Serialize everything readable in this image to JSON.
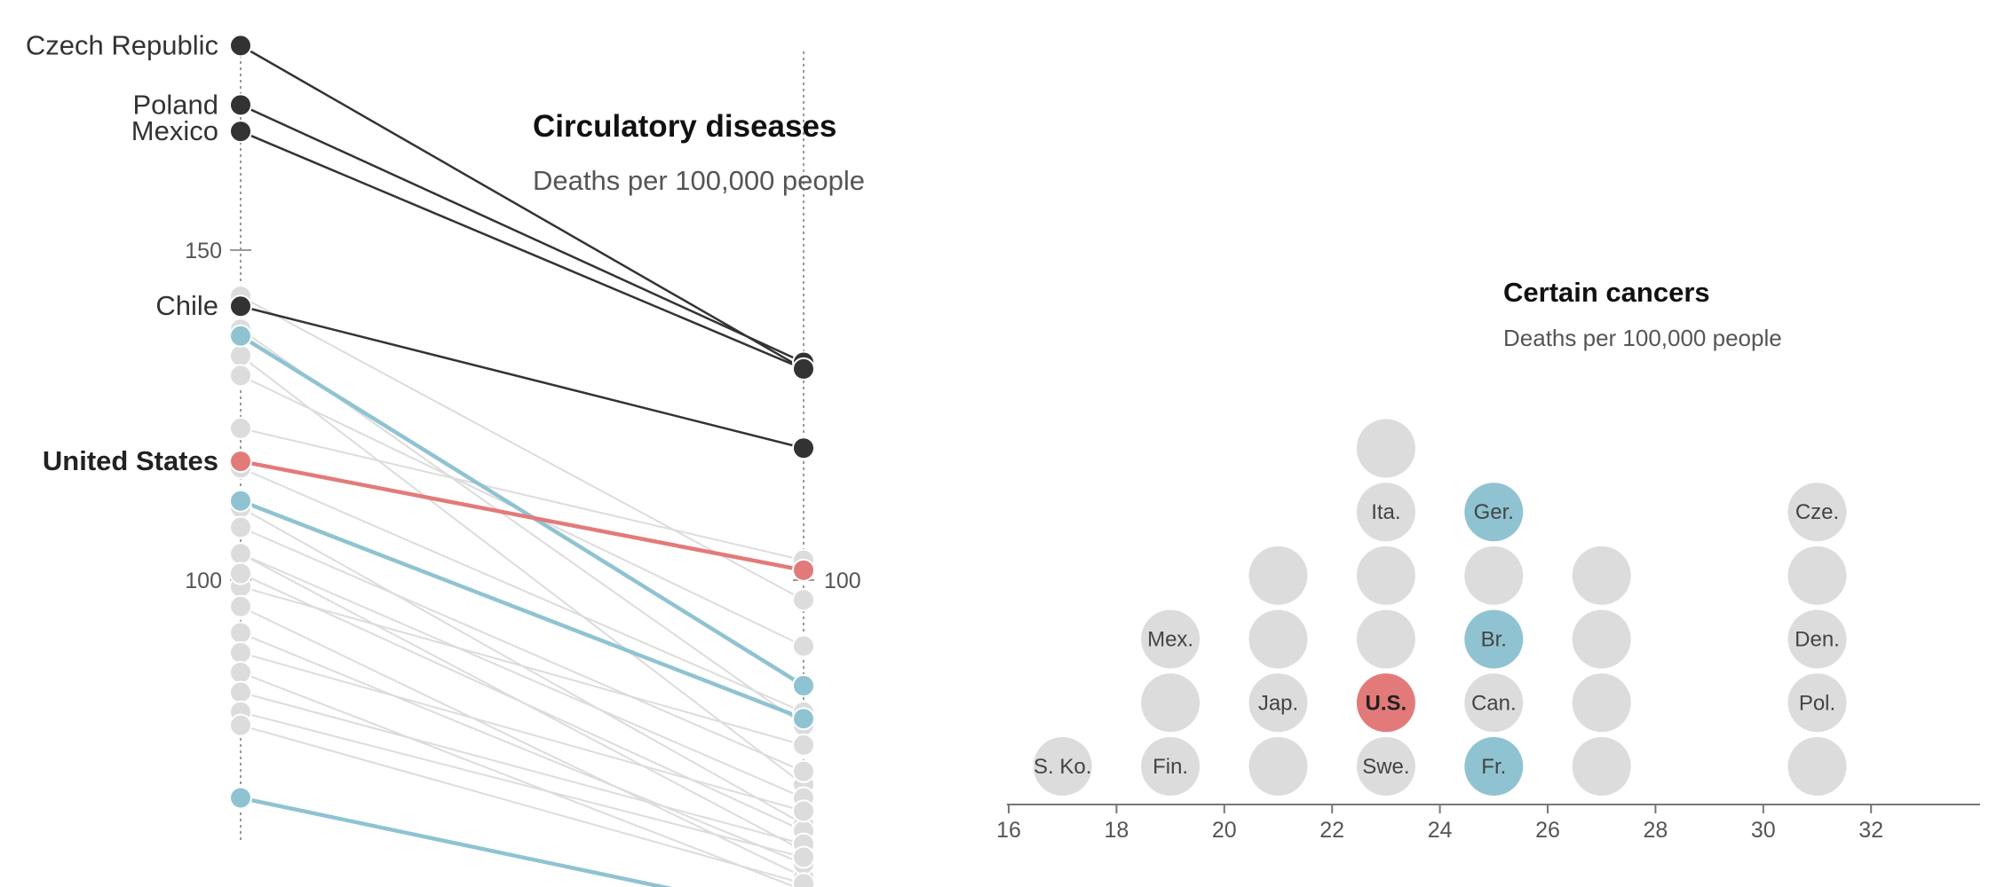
{
  "chart_data": [
    {
      "type": "slope",
      "title": "Circulatory diseases",
      "subtitle": "Deaths per 100,000 people",
      "left_tick_labels": [
        "150",
        "100"
      ],
      "right_tick_labels": [
        "100"
      ],
      "ylim": [
        40,
        185
      ],
      "colors": {
        "gray": "#dcdcdc",
        "dark": "#333333",
        "blue": "#8fc3d1",
        "us": "#e37a7a"
      },
      "series": [
        {
          "name": "Czech Republic",
          "left": 181,
          "right": 132,
          "style": "dark"
        },
        {
          "name": "Poland",
          "left": 172,
          "right": 133,
          "style": "dark"
        },
        {
          "name": "Mexico",
          "left": 168,
          "right": 132,
          "style": "dark"
        },
        {
          "name": "Chile",
          "left": 141.5,
          "right": 120,
          "style": "dark"
        },
        {
          "name": "United States",
          "left": 118,
          "right": 101.5,
          "style": "us"
        },
        {
          "style": "blue",
          "left": 137,
          "right": 84
        },
        {
          "style": "blue",
          "left": 112,
          "right": 79
        },
        {
          "style": "blue",
          "left": 67,
          "right": 49
        },
        {
          "style": "gray",
          "left": 143,
          "right": 97
        },
        {
          "style": "gray",
          "left": 138,
          "right": 78
        },
        {
          "style": "gray",
          "left": 134,
          "right": 69
        },
        {
          "style": "gray",
          "left": 131,
          "right": 90
        },
        {
          "style": "gray",
          "left": 123,
          "right": 103
        },
        {
          "style": "gray",
          "left": 117,
          "right": 80
        },
        {
          "style": "gray",
          "left": 111,
          "right": 63
        },
        {
          "style": "gray",
          "left": 108,
          "right": 71
        },
        {
          "style": "gray",
          "left": 104,
          "right": 59
        },
        {
          "style": "gray",
          "left": 99,
          "right": 75
        },
        {
          "style": "gray",
          "left": 104,
          "right": 67
        },
        {
          "style": "gray",
          "left": 101,
          "right": 62
        },
        {
          "style": "gray",
          "left": 96,
          "right": 55
        },
        {
          "style": "gray",
          "left": 92,
          "right": 57
        },
        {
          "style": "gray",
          "left": 89,
          "right": 65
        },
        {
          "style": "gray",
          "left": 86,
          "right": 53
        },
        {
          "style": "gray",
          "left": 83,
          "right": 60
        },
        {
          "style": "gray",
          "left": 80,
          "right": 58
        },
        {
          "style": "gray",
          "left": 78,
          "right": 54
        }
      ]
    },
    {
      "type": "dot-histogram",
      "title": "Certain cancers",
      "subtitle": "Deaths per 100,000 people",
      "xlim": [
        16,
        34
      ],
      "x_ticks": [
        16,
        18,
        20,
        22,
        24,
        26,
        28,
        30,
        32
      ],
      "colors": {
        "gray": "#dcdcdc",
        "blue": "#8fc3d1",
        "us": "#e37a7a"
      },
      "points": [
        {
          "x": 17,
          "row": 0,
          "label": "S. Ko.",
          "style": "gray"
        },
        {
          "x": 19,
          "row": 0,
          "label": "Fin.",
          "style": "gray"
        },
        {
          "x": 19,
          "row": 1,
          "label": "",
          "style": "gray"
        },
        {
          "x": 19,
          "row": 2,
          "label": "Mex.",
          "style": "gray"
        },
        {
          "x": 21,
          "row": 0,
          "label": "",
          "style": "gray"
        },
        {
          "x": 21,
          "row": 1,
          "label": "Jap.",
          "style": "gray"
        },
        {
          "x": 21,
          "row": 2,
          "label": "",
          "style": "gray"
        },
        {
          "x": 21,
          "row": 3,
          "label": "",
          "style": "gray"
        },
        {
          "x": 23,
          "row": 0,
          "label": "Swe.",
          "style": "gray"
        },
        {
          "x": 23,
          "row": 1,
          "label": "U.S.",
          "style": "us"
        },
        {
          "x": 23,
          "row": 2,
          "label": "",
          "style": "gray"
        },
        {
          "x": 23,
          "row": 3,
          "label": "",
          "style": "gray"
        },
        {
          "x": 23,
          "row": 4,
          "label": "Ita.",
          "style": "gray"
        },
        {
          "x": 23,
          "row": 5,
          "label": "",
          "style": "gray"
        },
        {
          "x": 25,
          "row": 0,
          "label": "Fr.",
          "style": "blue"
        },
        {
          "x": 25,
          "row": 1,
          "label": "Can.",
          "style": "gray"
        },
        {
          "x": 25,
          "row": 2,
          "label": "Br.",
          "style": "blue"
        },
        {
          "x": 25,
          "row": 3,
          "label": "",
          "style": "gray"
        },
        {
          "x": 25,
          "row": 4,
          "label": "Ger.",
          "style": "blue"
        },
        {
          "x": 27,
          "row": 0,
          "label": "",
          "style": "gray"
        },
        {
          "x": 27,
          "row": 1,
          "label": "",
          "style": "gray"
        },
        {
          "x": 27,
          "row": 2,
          "label": "",
          "style": "gray"
        },
        {
          "x": 27,
          "row": 3,
          "label": "",
          "style": "gray"
        },
        {
          "x": 31,
          "row": 0,
          "label": "",
          "style": "gray"
        },
        {
          "x": 31,
          "row": 1,
          "label": "Pol.",
          "style": "gray"
        },
        {
          "x": 31,
          "row": 2,
          "label": "Den.",
          "style": "gray"
        },
        {
          "x": 31,
          "row": 3,
          "label": "",
          "style": "gray"
        },
        {
          "x": 31,
          "row": 4,
          "label": "Cze.",
          "style": "gray"
        }
      ]
    }
  ]
}
